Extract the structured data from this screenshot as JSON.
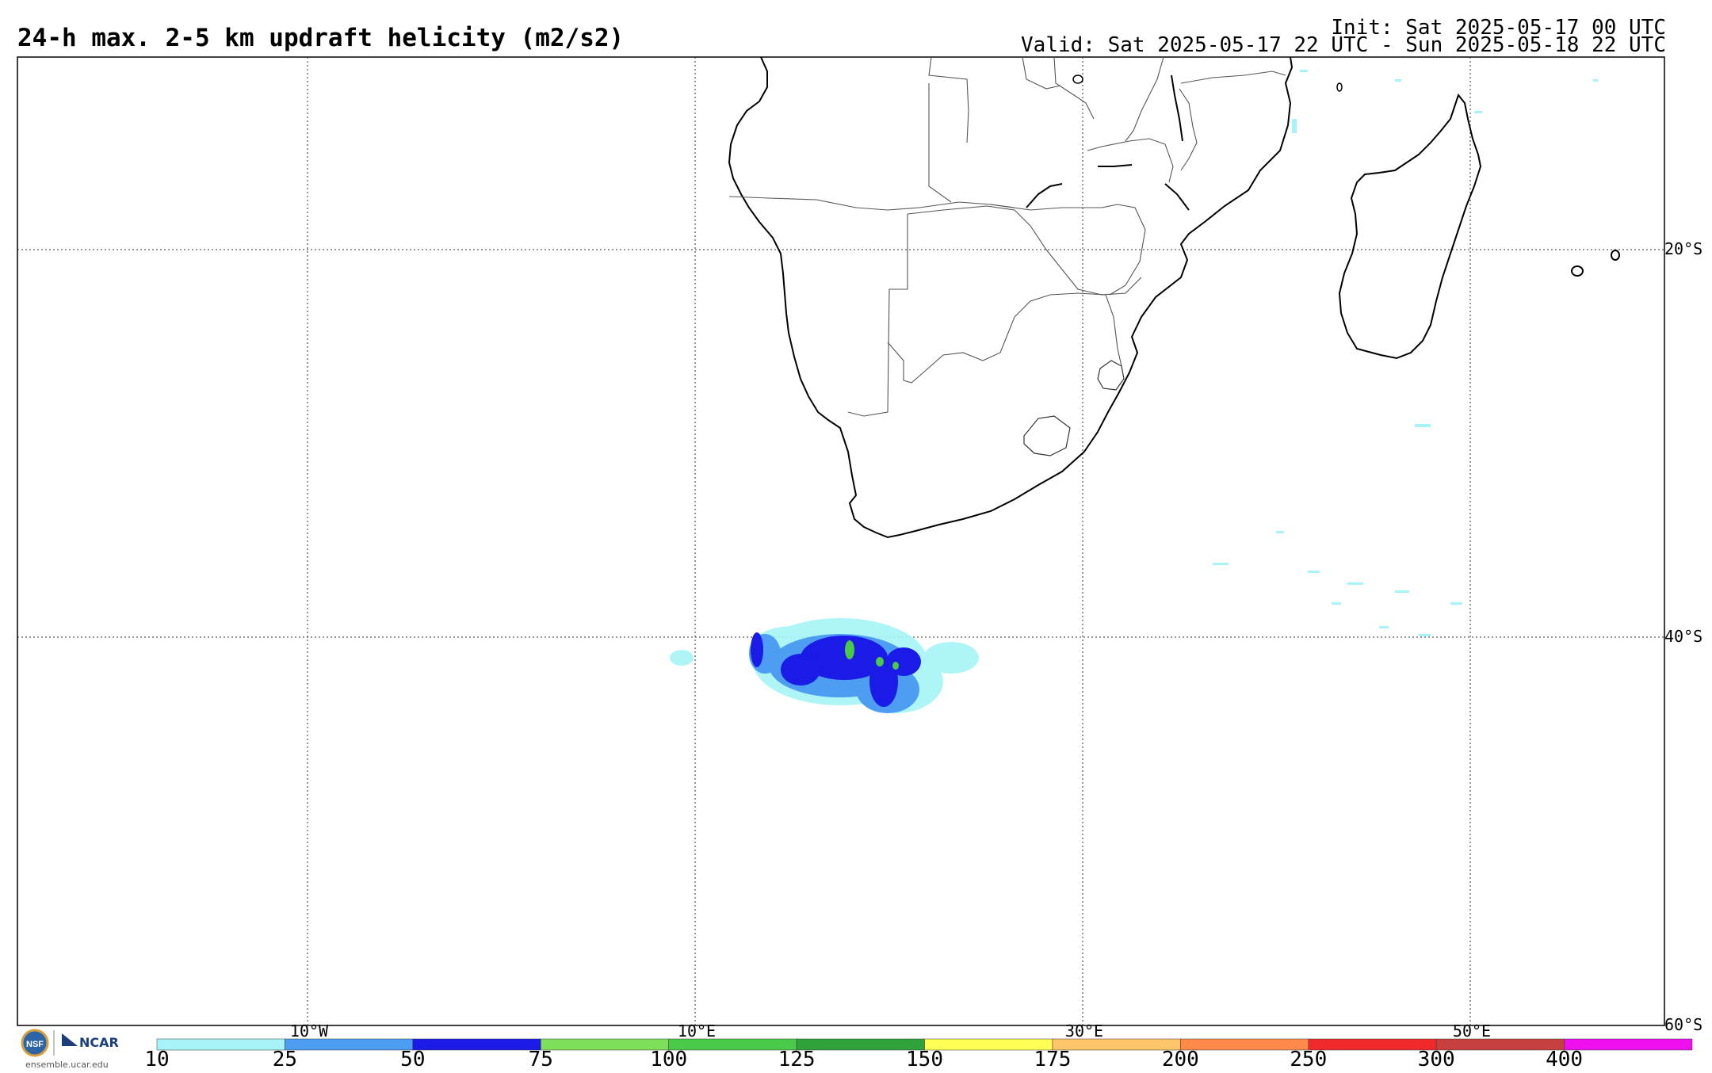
{
  "header": {
    "title": "24-h max. 2-5 km updraft helicity (m2/s2)",
    "init": "Init: Sat 2025-05-17 00 UTC",
    "valid": "Valid: Sat 2025-05-17 22 UTC - Sun 2025-05-18 22 UTC"
  },
  "grid": {
    "lat_labels": [
      "20°S",
      "40°S",
      "60°S"
    ],
    "lon_labels": [
      "10°W",
      "10°E",
      "30°E",
      "50°E"
    ]
  },
  "colorbar": {
    "ticks": [
      "10",
      "25",
      "50",
      "75",
      "100",
      "125",
      "150",
      "175",
      "200",
      "250",
      "300",
      "400"
    ],
    "colors": [
      "#a6f4f7",
      "#4d9ef2",
      "#1b1be8",
      "#7ee05a",
      "#4bc94b",
      "#2fa33a",
      "#ffff55",
      "#ffc56a",
      "#ff8a4a",
      "#f02a2a",
      "#c8403e",
      "#ef10ef"
    ]
  },
  "logo": {
    "org": "NCAR",
    "url": "ensemble.ucar.edu"
  }
}
